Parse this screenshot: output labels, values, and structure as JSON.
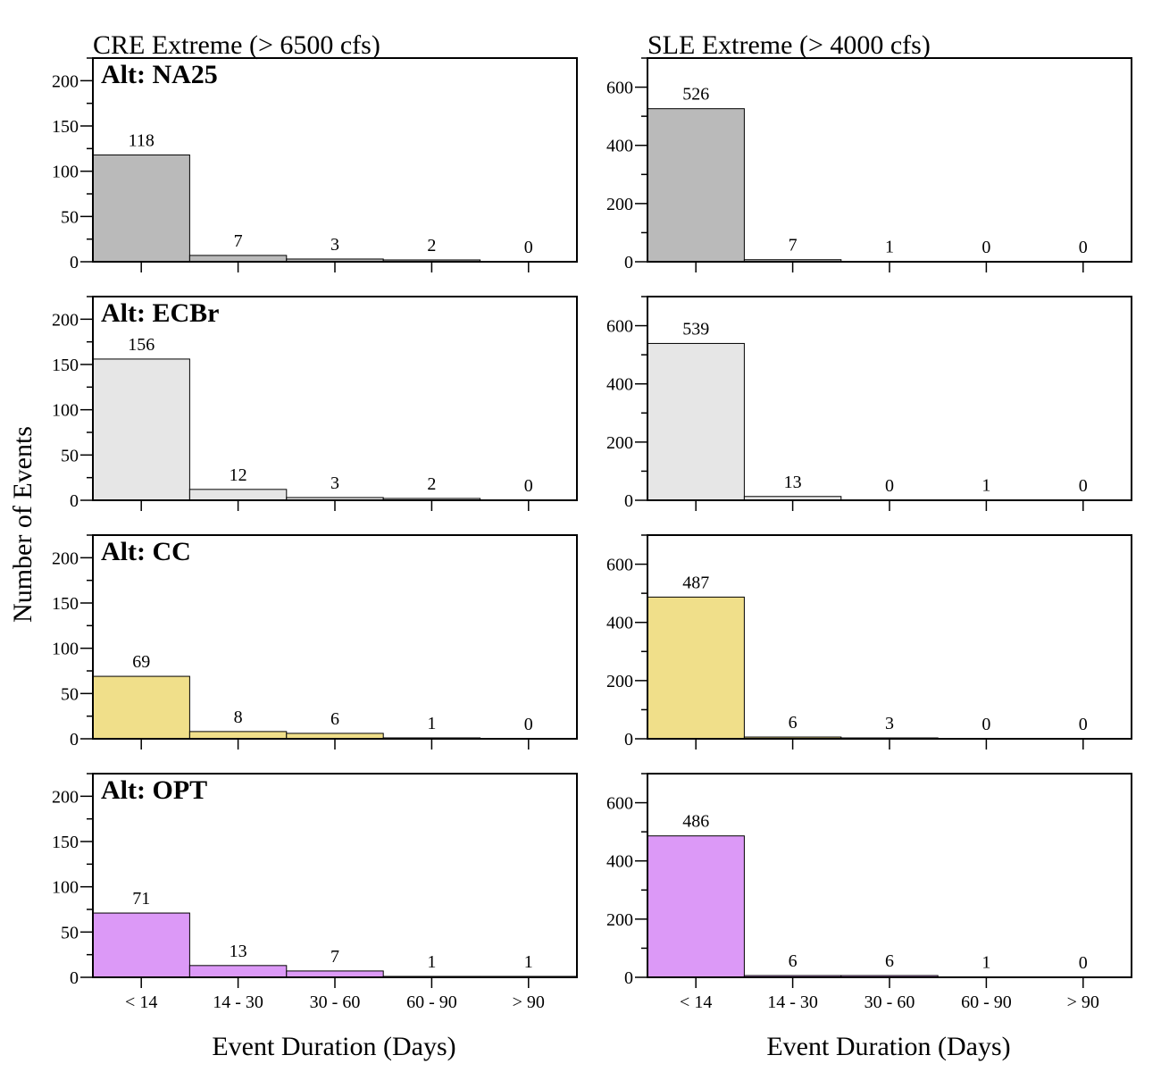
{
  "figure": {
    "ylabel": "Number of Events",
    "xlabel": "Event Duration (Days)"
  },
  "chart_data": {
    "type": "bar",
    "categories": [
      "< 14",
      "14 - 30",
      "30 - 60",
      "60 - 90",
      "> 90"
    ],
    "columns": [
      {
        "title": "CRE Extreme (> 6500 cfs)",
        "ylim": [
          0,
          225
        ],
        "yticks": [
          0,
          50,
          100,
          150,
          200
        ],
        "minor_step": 25
      },
      {
        "title": "SLE Extreme (> 4000 cfs)",
        "ylim": [
          0,
          700
        ],
        "yticks": [
          0,
          200,
          400,
          600
        ],
        "minor_step": 100
      }
    ],
    "rows": [
      {
        "label": "Alt: NA25",
        "color": "#bababa",
        "values": [
          [
            118,
            7,
            3,
            2,
            0
          ],
          [
            526,
            7,
            1,
            0,
            0
          ]
        ]
      },
      {
        "label": "Alt: ECBr",
        "color": "#e6e6e6",
        "values": [
          [
            156,
            12,
            3,
            2,
            0
          ],
          [
            539,
            13,
            0,
            1,
            0
          ]
        ]
      },
      {
        "label": "Alt: CC",
        "color": "#f0df8a",
        "values": [
          [
            69,
            8,
            6,
            1,
            0
          ],
          [
            487,
            6,
            3,
            0,
            0
          ]
        ]
      },
      {
        "label": "Alt: OPT",
        "color": "#dc99f7",
        "values": [
          [
            71,
            13,
            7,
            1,
            1
          ],
          [
            486,
            6,
            6,
            1,
            0
          ]
        ]
      }
    ]
  }
}
